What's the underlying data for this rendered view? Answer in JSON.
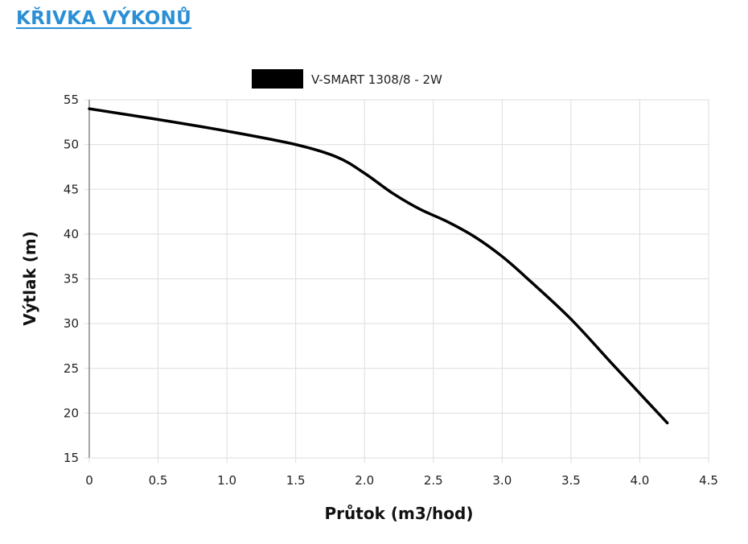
{
  "page": {
    "title": "KŘIVKA VÝKONŮ"
  },
  "colors": {
    "title": "#2b8fd6",
    "series": "#000000",
    "grid": "#dddddd",
    "axis": "#888888"
  },
  "chart_data": {
    "type": "line",
    "title": "",
    "xlabel": "Průtok (m3/hod)",
    "ylabel": "Výtlak (m)",
    "xlim": [
      0,
      4.5
    ],
    "ylim": [
      15,
      55
    ],
    "xticks": [
      "0",
      "0.5",
      "1.0",
      "1.5",
      "2.0",
      "2.5",
      "3.0",
      "3.5",
      "4.0",
      "4.5"
    ],
    "yticks": [
      "15",
      "20",
      "25",
      "30",
      "35",
      "40",
      "45",
      "50",
      "55"
    ],
    "grid": true,
    "legend_position": "top-center",
    "series": [
      {
        "name": "V-SMART 1308/8 - 2W",
        "color": "#000000",
        "x": [
          0,
          0.5,
          1.0,
          1.5,
          1.8,
          2.0,
          2.2,
          2.4,
          2.6,
          2.8,
          3.0,
          3.2,
          3.5,
          3.8,
          4.0,
          4.2
        ],
        "y": [
          54.0,
          52.8,
          51.5,
          50.0,
          48.6,
          46.8,
          44.6,
          42.8,
          41.4,
          39.7,
          37.5,
          34.8,
          30.5,
          25.5,
          22.2,
          18.9
        ]
      }
    ]
  }
}
